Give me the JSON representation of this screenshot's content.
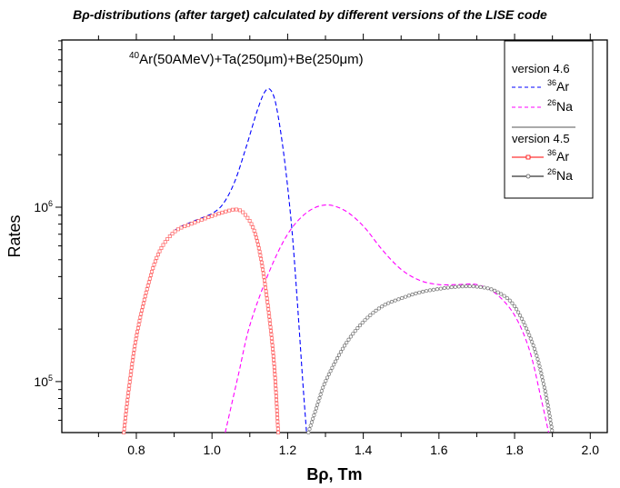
{
  "chart_data": {
    "type": "line",
    "title": "Bρ-distributions (after target) calculated by different versions of the LISE code",
    "annotation": "40Ar(50AMeV)+Ta(250μm)+Be(250μm)",
    "annotation_parts": {
      "sup": "40",
      "text": "Ar(50AMeV)+Ta(250μm)+Be(250μm)"
    },
    "xlabel": "Bρ, Tm",
    "ylabel": "Rates",
    "xlim": [
      0.603,
      2.045
    ],
    "ylim": [
      51000,
      9100000
    ],
    "yscale": "log",
    "x_ticks": [
      "0.8",
      "1.0",
      "1.2",
      "1.4",
      "1.6",
      "1.8",
      "2.0"
    ],
    "y_ticks": [
      {
        "base": "10",
        "exp": "5"
      },
      {
        "base": "10",
        "exp": "6"
      }
    ],
    "legend": {
      "placement": "top-right",
      "groups": [
        {
          "title": "version 4.6",
          "entries": [
            {
              "sup": "36",
              "label": "Ar"
            },
            {
              "sup": "26",
              "label": "Na"
            }
          ]
        },
        {
          "title": "version 4.5",
          "entries": [
            {
              "sup": "36",
              "label": "Ar"
            },
            {
              "sup": "26",
              "label": "Na"
            }
          ]
        }
      ]
    },
    "series": [
      {
        "name": "36Ar v4.6",
        "color": "#0000ff",
        "style": "dashed",
        "marker": "none",
        "points": [
          [
            0.765,
            51000
          ],
          [
            0.78,
            90000
          ],
          [
            0.8,
            180000
          ],
          [
            0.83,
            350000
          ],
          [
            0.86,
            550000
          ],
          [
            0.9,
            730000
          ],
          [
            0.95,
            830000
          ],
          [
            1.0,
            920000
          ],
          [
            1.03,
            1050000
          ],
          [
            1.06,
            1400000
          ],
          [
            1.09,
            2200000
          ],
          [
            1.12,
            3600000
          ],
          [
            1.14,
            4600000
          ],
          [
            1.155,
            4700000
          ],
          [
            1.17,
            3800000
          ],
          [
            1.19,
            2000000
          ],
          [
            1.21,
            800000
          ],
          [
            1.225,
            300000
          ],
          [
            1.24,
            100000
          ],
          [
            1.25,
            51000
          ]
        ]
      },
      {
        "name": "26Na v4.6",
        "color": "#ff00ff",
        "style": "dashed",
        "marker": "none",
        "points": [
          [
            1.035,
            51000
          ],
          [
            1.07,
            110000
          ],
          [
            1.1,
            210000
          ],
          [
            1.15,
            420000
          ],
          [
            1.2,
            700000
          ],
          [
            1.25,
            930000
          ],
          [
            1.3,
            1030000
          ],
          [
            1.35,
            960000
          ],
          [
            1.4,
            780000
          ],
          [
            1.45,
            570000
          ],
          [
            1.5,
            440000
          ],
          [
            1.55,
            380000
          ],
          [
            1.6,
            360000
          ],
          [
            1.65,
            360000
          ],
          [
            1.7,
            360000
          ],
          [
            1.75,
            320000
          ],
          [
            1.8,
            240000
          ],
          [
            1.84,
            150000
          ],
          [
            1.87,
            80000
          ],
          [
            1.89,
            51000
          ]
        ]
      },
      {
        "name": "36Ar v4.5",
        "color": "#ff0000",
        "style": "solid",
        "marker": "square",
        "points": [
          [
            0.767,
            51000
          ],
          [
            0.78,
            90000
          ],
          [
            0.8,
            180000
          ],
          [
            0.83,
            350000
          ],
          [
            0.86,
            550000
          ],
          [
            0.9,
            720000
          ],
          [
            0.95,
            810000
          ],
          [
            1.0,
            890000
          ],
          [
            1.04,
            950000
          ],
          [
            1.065,
            970000
          ],
          [
            1.085,
            920000
          ],
          [
            1.11,
            750000
          ],
          [
            1.13,
            500000
          ],
          [
            1.15,
            250000
          ],
          [
            1.165,
            120000
          ],
          [
            1.175,
            51000
          ]
        ]
      },
      {
        "name": "26Na v4.5",
        "color": "#000000",
        "style": "solid",
        "marker": "circle",
        "points": [
          [
            1.255,
            51000
          ],
          [
            1.28,
            75000
          ],
          [
            1.3,
            100000
          ],
          [
            1.35,
            160000
          ],
          [
            1.4,
            220000
          ],
          [
            1.45,
            270000
          ],
          [
            1.5,
            300000
          ],
          [
            1.55,
            325000
          ],
          [
            1.6,
            340000
          ],
          [
            1.65,
            350000
          ],
          [
            1.7,
            350000
          ],
          [
            1.75,
            330000
          ],
          [
            1.8,
            270000
          ],
          [
            1.85,
            160000
          ],
          [
            1.88,
            90000
          ],
          [
            1.9,
            51000
          ]
        ]
      }
    ]
  }
}
